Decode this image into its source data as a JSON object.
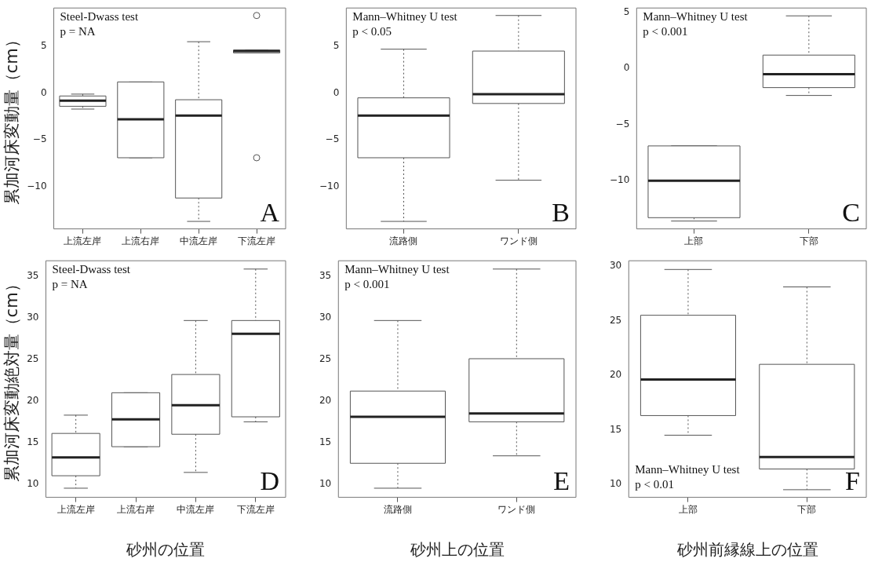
{
  "chart_data": [
    {
      "type": "box",
      "ylabel": "累加河床変動量（cm）",
      "categories": [
        "上流左岸",
        "上流右岸",
        "中流左岸",
        "下流左岸"
      ],
      "ylim": [
        -14.5,
        9.1
      ],
      "yticks": [
        -10,
        -5,
        0,
        5
      ],
      "annotations": [
        "Steel-Dwass test",
        "p = NA",
        "A"
      ],
      "boxes": [
        {
          "low": -1.7,
          "q1": -1.4,
          "median": -0.8,
          "q3": -0.3,
          "high": -0.1
        },
        {
          "low": -6.9,
          "q1": -6.9,
          "median": -2.8,
          "q3": 1.2,
          "high": 1.2
        },
        {
          "low": -13.7,
          "q1": -11.2,
          "median": -2.4,
          "q3": -0.7,
          "high": 5.5
        },
        {
          "low": 4.3,
          "q1": 4.3,
          "median": 4.5,
          "q3": 4.6,
          "high": 4.6,
          "outliers": [
            8.3,
            -6.9
          ]
        }
      ]
    },
    {
      "type": "box",
      "categories": [
        "流路側",
        "ワンド側"
      ],
      "ylim": [
        -14.5,
        9.1
      ],
      "yticks": [
        -10,
        -5,
        0,
        5
      ],
      "annotations": [
        "Mann–Whitney U test",
        "p < 0.05",
        "B"
      ],
      "boxes": [
        {
          "low": -13.7,
          "q1": -6.9,
          "median": -2.4,
          "q3": -0.5,
          "high": 4.7
        },
        {
          "low": -9.3,
          "q1": -1.1,
          "median": -0.1,
          "q3": 4.5,
          "high": 8.3
        }
      ]
    },
    {
      "type": "box",
      "categories": [
        "上部",
        "下部"
      ],
      "ylim": [
        -14.3,
        5.4
      ],
      "yticks": [
        -10,
        -5,
        0,
        5
      ],
      "annotations": [
        "Mann–Whitney U test",
        "p < 0.001",
        "C"
      ],
      "boxes": [
        {
          "low": -13.6,
          "q1": -13.3,
          "median": -10,
          "q3": -6.9,
          "high": -6.9
        },
        {
          "low": -2.4,
          "q1": -1.7,
          "median": -0.5,
          "q3": 1.2,
          "high": 4.7
        }
      ]
    },
    {
      "type": "box",
      "ylabel": "累加河床変動絶対量（cm）",
      "xlabel": "砂州の位置",
      "categories": [
        "上流左岸",
        "上流右岸",
        "中流左岸",
        "下流左岸"
      ],
      "ylim": [
        8.4,
        36.9
      ],
      "yticks": [
        10,
        15,
        20,
        25,
        30,
        35
      ],
      "annotations": [
        "Steel-Dwass test",
        "p = NA",
        "D"
      ],
      "boxes": [
        {
          "low": 9.5,
          "q1": 11,
          "median": 13.2,
          "q3": 16.1,
          "high": 18.3
        },
        {
          "low": 14.5,
          "q1": 14.5,
          "median": 17.8,
          "q3": 21,
          "high": 21
        },
        {
          "low": 11.4,
          "q1": 16,
          "median": 19.5,
          "q3": 23.2,
          "high": 29.7
        },
        {
          "low": 17.5,
          "q1": 18.1,
          "median": 28.1,
          "q3": 29.7,
          "high": 35.9
        }
      ]
    },
    {
      "type": "box",
      "xlabel": "砂州上の位置",
      "categories": [
        "流路側",
        "ワンド側"
      ],
      "ylim": [
        8.4,
        36.9
      ],
      "yticks": [
        10,
        15,
        20,
        25,
        30,
        35
      ],
      "annotations": [
        "Mann–Whitney U test",
        "p < 0.001",
        "E"
      ],
      "boxes": [
        {
          "low": 9.5,
          "q1": 12.5,
          "median": 18.1,
          "q3": 21.2,
          "high": 29.7
        },
        {
          "low": 13.4,
          "q1": 17.5,
          "median": 18.5,
          "q3": 25.1,
          "high": 35.9
        }
      ]
    },
    {
      "type": "box",
      "xlabel": "砂州前縁線上の位置",
      "categories": [
        "上部",
        "下部"
      ],
      "ylim": [
        8.8,
        30.5
      ],
      "yticks": [
        10,
        15,
        20,
        25,
        30
      ],
      "annotations": [
        "Mann–Whitney U test",
        "p < 0.01",
        "F"
      ],
      "boxes": [
        {
          "low": 14.5,
          "q1": 16.3,
          "median": 19.6,
          "q3": 25.5,
          "high": 29.7
        },
        {
          "low": 9.5,
          "q1": 11.4,
          "median": 12.5,
          "q3": 21,
          "high": 28.1
        }
      ]
    }
  ]
}
